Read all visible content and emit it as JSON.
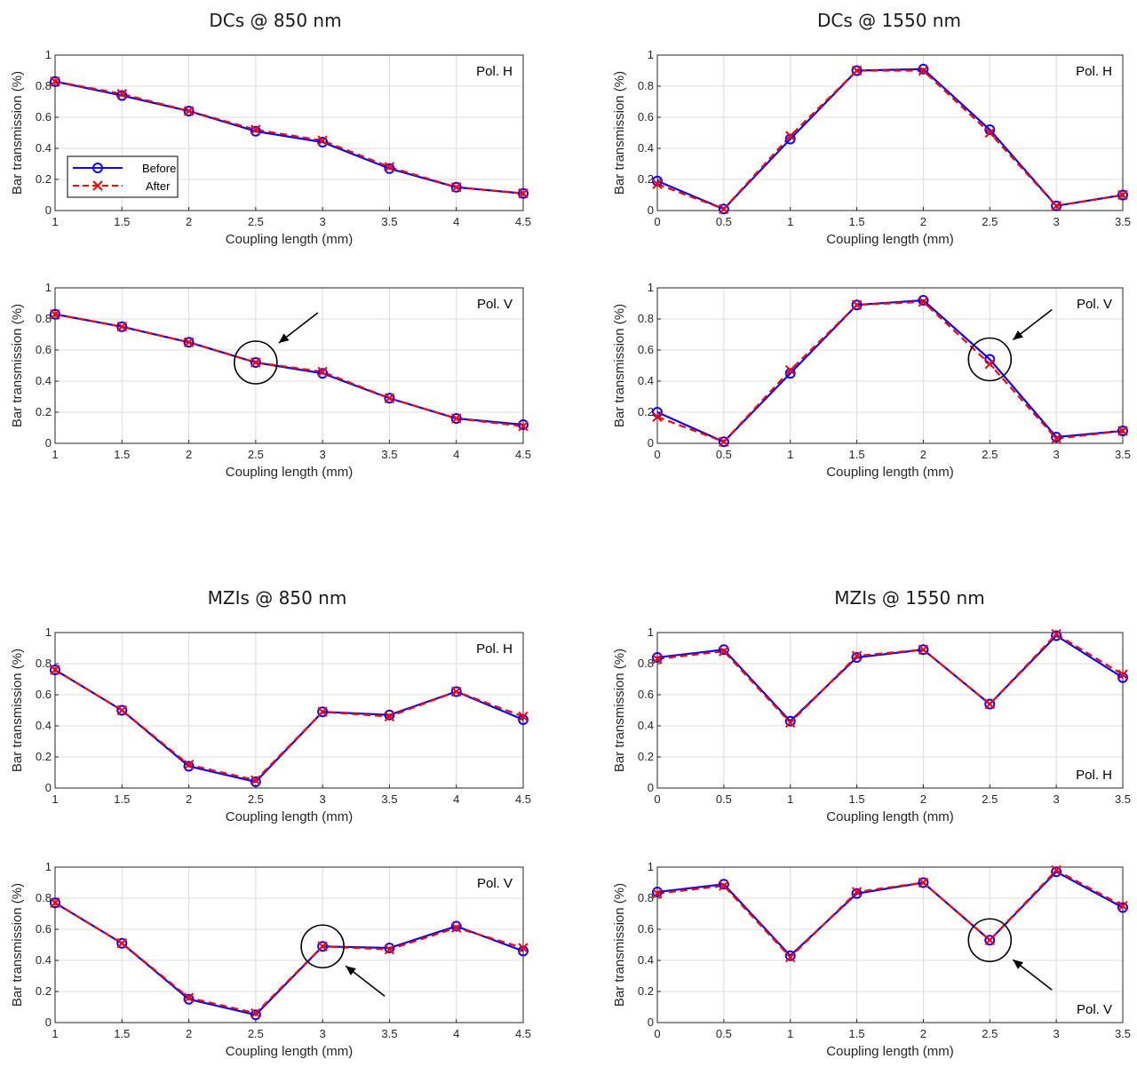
{
  "group_titles": [
    "DCs @ 850 nm",
    "DCs @ 1550 nm",
    "MZIs @ 850 nm",
    "MZIs @ 1550 nm"
  ],
  "legend": [
    "Before",
    "After"
  ],
  "colors": {
    "before": "#0a00ff",
    "after": "#ff0000",
    "axis": "#262626",
    "grid": "#dcdcdc"
  },
  "chart_data": [
    {
      "type": "line",
      "group": 0,
      "annotation": "Pol. H",
      "xlabel": "Coupling length (mm)",
      "ylabel": "Bar transmission (%)",
      "xlim": [
        1,
        4.5
      ],
      "ylim": [
        0,
        1
      ],
      "xticks": [
        "1",
        "1.5",
        "2",
        "2.5",
        "3",
        "3.5",
        "4",
        "4.5"
      ],
      "yticks": [
        "0",
        "0.2",
        "0.4",
        "0.6",
        "0.8",
        "1"
      ],
      "grid": true,
      "legend": "left",
      "x": [
        1,
        1.5,
        2,
        2.5,
        3,
        3.5,
        4,
        4.5
      ],
      "series": [
        {
          "name": "Before",
          "values": [
            0.83,
            0.74,
            0.64,
            0.51,
            0.44,
            0.27,
            0.15,
            0.11
          ]
        },
        {
          "name": "After",
          "values": [
            0.83,
            0.75,
            0.64,
            0.52,
            0.45,
            0.28,
            0.15,
            0.11
          ]
        }
      ]
    },
    {
      "type": "line",
      "group": 0,
      "annotation": "Pol. V",
      "xlabel": "Coupling length (mm)",
      "ylabel": "Bar transmission (%)",
      "xlim": [
        1,
        4.5
      ],
      "ylim": [
        0,
        1
      ],
      "xticks": [
        "1",
        "1.5",
        "2",
        "2.5",
        "3",
        "3.5",
        "4",
        "4.5"
      ],
      "yticks": [
        "0",
        "0.2",
        "0.4",
        "0.6",
        "0.8",
        "1"
      ],
      "grid": true,
      "x": [
        1,
        1.5,
        2,
        2.5,
        3,
        3.5,
        4,
        4.5
      ],
      "highlight": {
        "x": 2.5,
        "y": 0.52,
        "arrow_from": "upper-right"
      },
      "series": [
        {
          "name": "Before",
          "values": [
            0.83,
            0.75,
            0.65,
            0.52,
            0.45,
            0.29,
            0.16,
            0.12
          ]
        },
        {
          "name": "After",
          "values": [
            0.83,
            0.75,
            0.65,
            0.52,
            0.46,
            0.29,
            0.16,
            0.11
          ]
        }
      ]
    },
    {
      "type": "line",
      "group": 1,
      "annotation": "Pol. H",
      "xlabel": "Coupling length (mm)",
      "ylabel": "Bar transmission (%)",
      "xlim": [
        0,
        3.5
      ],
      "ylim": [
        0,
        1
      ],
      "xticks": [
        "0",
        "0.5",
        "1",
        "1.5",
        "2",
        "2.5",
        "3",
        "3.5"
      ],
      "yticks": [
        "0",
        "0.2",
        "0.4",
        "0.6",
        "0.8",
        "1"
      ],
      "grid": true,
      "x": [
        0,
        0.5,
        1,
        1.5,
        2,
        2.5,
        3,
        3.5
      ],
      "series": [
        {
          "name": "Before",
          "values": [
            0.19,
            0.01,
            0.46,
            0.9,
            0.91,
            0.52,
            0.03,
            0.1
          ]
        },
        {
          "name": "After",
          "values": [
            0.17,
            0.01,
            0.48,
            0.9,
            0.9,
            0.5,
            0.03,
            0.1
          ]
        }
      ]
    },
    {
      "type": "line",
      "group": 1,
      "annotation": "Pol. V",
      "xlabel": "Coupling length (mm)",
      "ylabel": "Bar transmission (%)",
      "xlim": [
        0,
        3.5
      ],
      "ylim": [
        0,
        1
      ],
      "xticks": [
        "0",
        "0.5",
        "1",
        "1.5",
        "2",
        "2.5",
        "3",
        "3.5"
      ],
      "yticks": [
        "0",
        "0.2",
        "0.4",
        "0.6",
        "0.8",
        "1"
      ],
      "grid": true,
      "x": [
        0,
        0.5,
        1,
        1.5,
        2,
        2.5,
        3,
        3.5
      ],
      "highlight": {
        "x": 2.5,
        "y": 0.54,
        "arrow_from": "upper-right"
      },
      "series": [
        {
          "name": "Before",
          "values": [
            0.2,
            0.01,
            0.45,
            0.89,
            0.92,
            0.54,
            0.04,
            0.08
          ]
        },
        {
          "name": "After",
          "values": [
            0.17,
            0.01,
            0.47,
            0.89,
            0.91,
            0.51,
            0.03,
            0.08
          ]
        }
      ]
    },
    {
      "type": "line",
      "group": 2,
      "annotation": "Pol. H",
      "xlabel": "Coupling length (mm)",
      "ylabel": "Bar transmission (%)",
      "xlim": [
        1,
        4.5
      ],
      "ylim": [
        0,
        1
      ],
      "xticks": [
        "1",
        "1.5",
        "2",
        "2.5",
        "3",
        "3.5",
        "4",
        "4.5"
      ],
      "yticks": [
        "0",
        "0.2",
        "0.4",
        "0.6",
        "0.8",
        "1"
      ],
      "grid": true,
      "x": [
        1,
        1.5,
        2,
        2.5,
        3,
        3.5,
        4,
        4.5
      ],
      "series": [
        {
          "name": "Before",
          "values": [
            0.76,
            0.5,
            0.14,
            0.04,
            0.49,
            0.47,
            0.62,
            0.44
          ]
        },
        {
          "name": "After",
          "values": [
            0.76,
            0.5,
            0.15,
            0.05,
            0.49,
            0.46,
            0.62,
            0.46
          ]
        }
      ]
    },
    {
      "type": "line",
      "group": 2,
      "annotation": "Pol. V",
      "xlabel": "Coupling length (mm)",
      "ylabel": "Bar transmission (%)",
      "xlim": [
        1,
        4.5
      ],
      "ylim": [
        0,
        1
      ],
      "xticks": [
        "1",
        "1.5",
        "2",
        "2.5",
        "3",
        "3.5",
        "4",
        "4.5"
      ],
      "yticks": [
        "0",
        "0.2",
        "0.4",
        "0.6",
        "0.8",
        "1"
      ],
      "grid": true,
      "x": [
        1,
        1.5,
        2,
        2.5,
        3,
        3.5,
        4,
        4.5
      ],
      "highlight": {
        "x": 3,
        "y": 0.49,
        "arrow_from": "lower-right"
      },
      "series": [
        {
          "name": "Before",
          "values": [
            0.77,
            0.51,
            0.15,
            0.05,
            0.49,
            0.48,
            0.62,
            0.46
          ]
        },
        {
          "name": "After",
          "values": [
            0.77,
            0.51,
            0.16,
            0.06,
            0.49,
            0.47,
            0.61,
            0.48
          ]
        }
      ]
    },
    {
      "type": "line",
      "group": 3,
      "annotation": "Pol. H",
      "annotation_position": "bottom-right",
      "xlabel": "Coupling length (mm)",
      "ylabel": "Bar transmission (%)",
      "xlim": [
        0,
        3.5
      ],
      "ylim": [
        0,
        1
      ],
      "xticks": [
        "0",
        "0.5",
        "1",
        "1.5",
        "2",
        "2.5",
        "3",
        "3.5"
      ],
      "yticks": [
        "0",
        "0.2",
        "0.4",
        "0.6",
        "0.8",
        "1"
      ],
      "grid": true,
      "x": [
        0,
        0.5,
        1,
        1.5,
        2,
        2.5,
        3,
        3.5
      ],
      "series": [
        {
          "name": "Before",
          "values": [
            0.84,
            0.89,
            0.43,
            0.84,
            0.89,
            0.54,
            0.98,
            0.71
          ]
        },
        {
          "name": "After",
          "values": [
            0.83,
            0.88,
            0.42,
            0.85,
            0.89,
            0.54,
            0.99,
            0.73
          ]
        }
      ]
    },
    {
      "type": "line",
      "group": 3,
      "annotation": "Pol. V",
      "annotation_position": "bottom-right",
      "xlabel": "Coupling length (mm)",
      "ylabel": "Bar transmission (%)",
      "xlim": [
        0,
        3.5
      ],
      "ylim": [
        0,
        1
      ],
      "xticks": [
        "0",
        "0.5",
        "1",
        "1.5",
        "2",
        "2.5",
        "3",
        "3.5"
      ],
      "yticks": [
        "0",
        "0.2",
        "0.4",
        "0.6",
        "0.8",
        "1"
      ],
      "grid": true,
      "x": [
        0,
        0.5,
        1,
        1.5,
        2,
        2.5,
        3,
        3.5
      ],
      "highlight": {
        "x": 2.5,
        "y": 0.53,
        "arrow_from": "lower-right"
      },
      "series": [
        {
          "name": "Before",
          "values": [
            0.84,
            0.89,
            0.43,
            0.83,
            0.9,
            0.53,
            0.97,
            0.74
          ]
        },
        {
          "name": "After",
          "values": [
            0.83,
            0.88,
            0.42,
            0.84,
            0.9,
            0.53,
            0.98,
            0.75
          ]
        }
      ]
    }
  ]
}
